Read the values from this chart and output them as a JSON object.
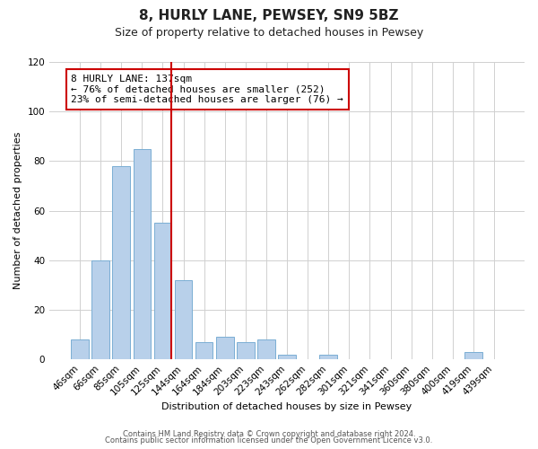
{
  "title": "8, HURLY LANE, PEWSEY, SN9 5BZ",
  "subtitle": "Size of property relative to detached houses in Pewsey",
  "xlabel": "Distribution of detached houses by size in Pewsey",
  "ylabel": "Number of detached properties",
  "footer_line1": "Contains HM Land Registry data © Crown copyright and database right 2024.",
  "footer_line2": "Contains public sector information licensed under the Open Government Licence v3.0.",
  "categories": [
    "46sqm",
    "66sqm",
    "85sqm",
    "105sqm",
    "125sqm",
    "144sqm",
    "164sqm",
    "184sqm",
    "203sqm",
    "223sqm",
    "243sqm",
    "262sqm",
    "282sqm",
    "301sqm",
    "321sqm",
    "341sqm",
    "360sqm",
    "380sqm",
    "400sqm",
    "419sqm",
    "439sqm"
  ],
  "values": [
    8,
    40,
    78,
    85,
    55,
    32,
    7,
    9,
    7,
    8,
    2,
    0,
    2,
    0,
    0,
    0,
    0,
    0,
    0,
    3,
    0
  ],
  "bar_color": "#b8d0ea",
  "bar_edge_color": "#7aaed4",
  "marker_color": "#cc0000",
  "annotation_line1": "8 HURLY LANE: 137sqm",
  "annotation_line2": "← 76% of detached houses are smaller (252)",
  "annotation_line3": "23% of semi-detached houses are larger (76) →",
  "annotation_box_color": "#ffffff",
  "annotation_box_edge": "#cc0000",
  "ylim": [
    0,
    120
  ],
  "yticks": [
    0,
    20,
    40,
    60,
    80,
    100,
    120
  ],
  "background_color": "#ffffff",
  "grid_color": "#d0d0d0",
  "title_fontsize": 11,
  "subtitle_fontsize": 9,
  "axis_label_fontsize": 8,
  "tick_fontsize": 7.5,
  "footer_fontsize": 6
}
